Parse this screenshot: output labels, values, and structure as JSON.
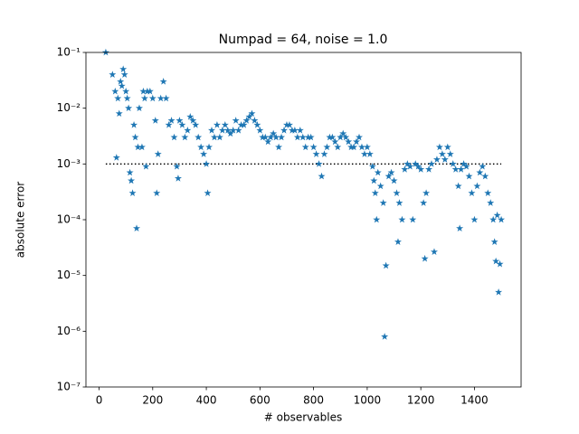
{
  "chart_data": {
    "type": "scatter",
    "title": "Numpad = 64, noise = 1.0",
    "xlabel": "# observables",
    "ylabel": "absolute error",
    "marker": "star",
    "color": "#1f77b4",
    "log_y": true,
    "xlim": [
      -49,
      1574
    ],
    "ylim": [
      1e-07,
      0.1
    ],
    "xticks": [
      0,
      200,
      400,
      600,
      800,
      1000,
      1200,
      1400
    ],
    "yticks": [
      {
        "value": 1e-07,
        "label": "10⁻⁷"
      },
      {
        "value": 1e-06,
        "label": "10⁻⁶"
      },
      {
        "value": 1e-05,
        "label": "10⁻⁵"
      },
      {
        "value": 0.0001,
        "label": "10⁻⁴"
      },
      {
        "value": 0.001,
        "label": "10⁻³"
      },
      {
        "value": 0.01,
        "label": "10⁻²"
      },
      {
        "value": 0.1,
        "label": "10⁻¹"
      }
    ],
    "reference_line": {
      "y": 0.001,
      "x": [
        25,
        1500
      ],
      "color": "#000000",
      "style": "dotted"
    },
    "x": [
      25,
      50,
      60,
      65,
      70,
      75,
      80,
      85,
      90,
      95,
      100,
      105,
      110,
      115,
      120,
      125,
      130,
      135,
      140,
      145,
      150,
      160,
      165,
      170,
      175,
      180,
      190,
      200,
      210,
      215,
      220,
      230,
      240,
      250,
      260,
      270,
      280,
      290,
      295,
      300,
      310,
      320,
      330,
      340,
      350,
      360,
      370,
      380,
      390,
      400,
      405,
      410,
      420,
      430,
      440,
      450,
      460,
      470,
      480,
      490,
      500,
      510,
      520,
      530,
      540,
      550,
      560,
      570,
      580,
      590,
      600,
      610,
      620,
      630,
      640,
      650,
      660,
      670,
      680,
      690,
      700,
      710,
      720,
      730,
      740,
      750,
      760,
      770,
      780,
      790,
      800,
      810,
      820,
      830,
      840,
      850,
      860,
      870,
      880,
      890,
      900,
      910,
      920,
      930,
      940,
      950,
      960,
      970,
      980,
      990,
      1000,
      1010,
      1020,
      1025,
      1030,
      1035,
      1040,
      1050,
      1060,
      1065,
      1070,
      1080,
      1090,
      1100,
      1110,
      1115,
      1120,
      1130,
      1140,
      1150,
      1160,
      1170,
      1180,
      1190,
      1200,
      1210,
      1215,
      1220,
      1230,
      1240,
      1250,
      1260,
      1270,
      1280,
      1290,
      1300,
      1310,
      1320,
      1330,
      1340,
      1345,
      1350,
      1360,
      1370,
      1380,
      1390,
      1400,
      1410,
      1420,
      1430,
      1440,
      1450,
      1460,
      1470,
      1475,
      1480,
      1485,
      1490,
      1495,
      1500
    ],
    "values": [
      0.1,
      0.04,
      0.02,
      0.0013,
      0.015,
      0.008,
      0.03,
      0.025,
      0.05,
      0.04,
      0.02,
      0.015,
      0.01,
      0.0007,
      0.0005,
      0.0003,
      0.005,
      0.003,
      7e-05,
      0.002,
      0.01,
      0.002,
      0.02,
      0.015,
      0.0009,
      0.02,
      0.02,
      0.015,
      0.006,
      0.0003,
      0.0015,
      0.015,
      0.03,
      0.015,
      0.005,
      0.006,
      0.003,
      0.0009,
      0.00055,
      0.006,
      0.005,
      0.003,
      0.004,
      0.007,
      0.006,
      0.005,
      0.003,
      0.002,
      0.0015,
      0.001,
      0.0003,
      0.002,
      0.004,
      0.003,
      0.005,
      0.003,
      0.004,
      0.005,
      0.004,
      0.0035,
      0.004,
      0.006,
      0.004,
      0.005,
      0.005,
      0.006,
      0.007,
      0.008,
      0.006,
      0.005,
      0.004,
      0.003,
      0.003,
      0.0025,
      0.003,
      0.0035,
      0.003,
      0.002,
      0.003,
      0.004,
      0.005,
      0.005,
      0.004,
      0.004,
      0.003,
      0.004,
      0.003,
      0.002,
      0.003,
      0.003,
      0.002,
      0.0015,
      0.001,
      0.0006,
      0.0015,
      0.002,
      0.003,
      0.003,
      0.0025,
      0.002,
      0.003,
      0.0035,
      0.003,
      0.0025,
      0.002,
      0.002,
      0.0025,
      0.003,
      0.002,
      0.0015,
      0.002,
      0.0015,
      0.0009,
      0.0005,
      0.0003,
      0.0001,
      0.0007,
      0.0004,
      0.0002,
      8e-07,
      1.5e-05,
      0.0006,
      0.0007,
      0.0005,
      0.0003,
      4e-05,
      0.0002,
      0.0001,
      0.0008,
      0.001,
      0.0009,
      0.0001,
      0.001,
      0.0009,
      0.0008,
      0.0002,
      2e-05,
      0.0003,
      0.0008,
      0.001,
      2.65e-05,
      0.0012,
      0.002,
      0.0015,
      0.0012,
      0.002,
      0.0015,
      0.001,
      0.0008,
      0.0004,
      7e-05,
      0.0008,
      0.001,
      0.0009,
      0.0006,
      0.0003,
      0.0001,
      0.0004,
      0.0007,
      0.0009,
      0.0006,
      0.0003,
      0.0002,
      0.0001,
      4e-05,
      1.8e-05,
      0.00012,
      5e-06,
      1.6e-05,
      0.0001
    ]
  }
}
